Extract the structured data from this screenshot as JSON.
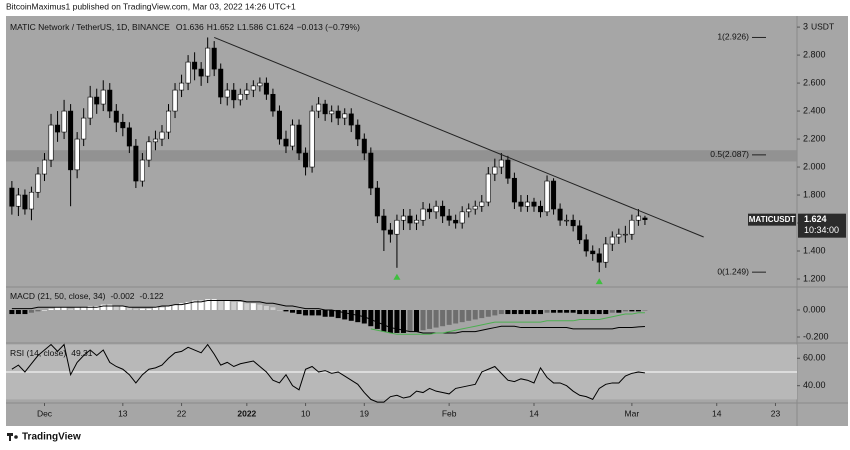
{
  "header": {
    "publisher": "BitcoinMaximus1 published on TradingView.com, Mar 03, 2022 14:26 UTC+1"
  },
  "footer": {
    "brand": "TradingView"
  },
  "chart_data": [
    {
      "type": "candlestick",
      "title": "MATIC Network / TetherUS, 1D, BINANCE",
      "ohlc_labels": [
        "O",
        "H",
        "L",
        "C"
      ],
      "change": "−0.013 (−0.79%)",
      "open": [
        1.85,
        1.72,
        1.8,
        1.7,
        1.82,
        1.95,
        2.05,
        2.3,
        2.25,
        2.4,
        1.98,
        2.2,
        2.35,
        2.5,
        2.45,
        2.55,
        2.4,
        2.32,
        2.28,
        2.15,
        1.9,
        2.05,
        2.18,
        2.2,
        2.25,
        2.4,
        2.55,
        2.6,
        2.75,
        2.7,
        2.65,
        2.85,
        2.7,
        2.5,
        2.55,
        2.48,
        2.52,
        2.55,
        2.58,
        2.6,
        2.52,
        2.4,
        2.2,
        2.15,
        2.3,
        2.1,
        2.0,
        2.4,
        2.45,
        2.38,
        2.4,
        2.35,
        2.38,
        2.3,
        2.2,
        2.1,
        1.85,
        1.65,
        1.55,
        1.52,
        1.62,
        1.65,
        1.6,
        1.62,
        1.7,
        1.68,
        1.72,
        1.65,
        1.62,
        1.6,
        1.68,
        1.7,
        1.72,
        1.75,
        1.95,
        2.0,
        2.05,
        1.92,
        1.75,
        1.72,
        1.75,
        1.72,
        1.68,
        1.9,
        1.7,
        1.62,
        1.62,
        1.58,
        1.48,
        1.4,
        1.38,
        1.32,
        1.45,
        1.5,
        1.52,
        1.52,
        1.62,
        1.636
      ],
      "high": [
        1.9,
        1.85,
        1.84,
        1.86,
        2.0,
        2.1,
        2.38,
        2.4,
        2.48,
        2.45,
        2.25,
        2.42,
        2.58,
        2.56,
        2.62,
        2.6,
        2.45,
        2.38,
        2.32,
        2.2,
        2.1,
        2.22,
        2.26,
        2.3,
        2.45,
        2.6,
        2.66,
        2.8,
        2.82,
        2.75,
        2.926,
        2.9,
        2.74,
        2.6,
        2.6,
        2.56,
        2.6,
        2.62,
        2.64,
        2.64,
        2.56,
        2.44,
        2.26,
        2.34,
        2.34,
        2.14,
        2.44,
        2.5,
        2.48,
        2.44,
        2.44,
        2.42,
        2.42,
        2.34,
        2.24,
        2.14,
        1.9,
        1.7,
        1.6,
        1.66,
        1.7,
        1.7,
        1.66,
        1.75,
        1.74,
        1.76,
        1.76,
        1.7,
        1.66,
        1.72,
        1.74,
        1.76,
        1.8,
        2.0,
        2.06,
        2.1,
        2.08,
        1.96,
        1.8,
        1.8,
        1.78,
        1.76,
        1.94,
        1.92,
        1.74,
        1.66,
        1.66,
        1.62,
        1.52,
        1.44,
        1.42,
        1.5,
        1.54,
        1.56,
        1.58,
        1.66,
        1.7,
        1.652
      ],
      "low": [
        1.66,
        1.65,
        1.66,
        1.62,
        1.78,
        1.9,
        2.0,
        2.18,
        2.2,
        1.72,
        1.92,
        2.15,
        2.3,
        2.38,
        2.4,
        2.35,
        2.25,
        2.22,
        2.1,
        1.85,
        1.86,
        2.0,
        2.12,
        2.15,
        2.2,
        2.35,
        2.5,
        2.55,
        2.62,
        2.58,
        2.6,
        2.65,
        2.45,
        2.44,
        2.42,
        2.44,
        2.48,
        2.5,
        2.54,
        2.48,
        2.36,
        2.16,
        2.1,
        2.12,
        2.05,
        1.94,
        1.96,
        2.35,
        2.33,
        2.32,
        2.3,
        2.3,
        2.25,
        2.15,
        2.05,
        1.8,
        1.6,
        1.4,
        1.46,
        1.28,
        1.55,
        1.55,
        1.55,
        1.58,
        1.63,
        1.63,
        1.6,
        1.58,
        1.56,
        1.56,
        1.64,
        1.66,
        1.68,
        1.72,
        1.9,
        1.95,
        1.88,
        1.7,
        1.68,
        1.68,
        1.68,
        1.64,
        1.65,
        1.66,
        1.58,
        1.58,
        1.54,
        1.45,
        1.36,
        1.33,
        1.249,
        1.28,
        1.4,
        1.45,
        1.46,
        1.48,
        1.58,
        1.586
      ],
      "close": [
        1.72,
        1.8,
        1.7,
        1.82,
        1.95,
        2.05,
        2.3,
        2.25,
        2.4,
        1.98,
        2.2,
        2.35,
        2.5,
        2.45,
        2.55,
        2.4,
        2.32,
        2.28,
        2.15,
        1.9,
        2.05,
        2.18,
        2.2,
        2.25,
        2.4,
        2.55,
        2.6,
        2.75,
        2.7,
        2.65,
        2.85,
        2.7,
        2.5,
        2.55,
        2.48,
        2.52,
        2.55,
        2.58,
        2.6,
        2.52,
        2.4,
        2.2,
        2.15,
        2.3,
        2.1,
        2.0,
        2.4,
        2.45,
        2.38,
        2.4,
        2.35,
        2.38,
        2.3,
        2.2,
        2.1,
        1.85,
        1.65,
        1.55,
        1.52,
        1.62,
        1.65,
        1.6,
        1.62,
        1.7,
        1.68,
        1.72,
        1.65,
        1.62,
        1.6,
        1.68,
        1.7,
        1.72,
        1.75,
        1.95,
        2.0,
        2.05,
        1.92,
        1.75,
        1.72,
        1.75,
        1.72,
        1.68,
        1.9,
        1.7,
        1.62,
        1.62,
        1.58,
        1.48,
        1.4,
        1.38,
        1.32,
        1.45,
        1.5,
        1.52,
        1.52,
        1.62,
        1.65,
        1.624
      ],
      "ylim": [
        1.15,
        3.065
      ],
      "yticks": [
        {
          "value": 1.2,
          "label": "1.200"
        },
        {
          "value": 1.4,
          "label": "1.400"
        },
        {
          "value": 1.6,
          "label": "1.600"
        },
        {
          "value": 1.8,
          "label": "1.800"
        },
        {
          "value": 2.0,
          "label": "2.000"
        },
        {
          "value": 2.2,
          "label": "2.200"
        },
        {
          "value": 2.4,
          "label": "2.400"
        },
        {
          "value": 2.6,
          "label": "2.600"
        },
        {
          "value": 2.8,
          "label": "2.800"
        },
        3
      ],
      "currency": "USDT",
      "symbol": "MATICUSDT",
      "countdown": "10:34:00",
      "xlim": [
        -0.9,
        120.3
      ],
      "xticks": [
        {
          "value": 5,
          "label": "Dec"
        },
        {
          "value": 17,
          "label": "13"
        },
        {
          "value": 26,
          "label": "22"
        },
        {
          "value": 36,
          "label": "2022"
        },
        {
          "value": 45,
          "label": "10"
        },
        {
          "value": 54,
          "label": "19"
        },
        {
          "value": 67,
          "label": "Feb"
        },
        {
          "value": 80,
          "label": "14"
        },
        {
          "value": 95,
          "label": "Mar"
        },
        {
          "value": 108,
          "label": "14"
        },
        {
          "value": 117,
          "label": "23"
        }
      ],
      "fib_levels": [
        {
          "value": 2.926,
          "label": "1(2.926)"
        },
        {
          "value": 2.087,
          "label": "0.5(2.087)"
        },
        {
          "value": 1.249,
          "label": "0(1.249)"
        }
      ],
      "zone": [
        2.04,
        2.12
      ],
      "trendline": {
        "x": [
          31,
          106
        ],
        "y": [
          2.926,
          1.5
        ]
      },
      "markers": [
        59,
        90
      ],
      "colors": {
        "up": "#ffffff",
        "down": "#000000",
        "marker": "#3fbf3f",
        "trendline": "#222222",
        "zone": "#8d8d8d"
      }
    },
    {
      "type": "macd",
      "title": "MACD (21, 50, close, 34)",
      "histogram": [
        -0.03,
        -0.03,
        -0.03,
        -0.02,
        -0.01,
        0,
        0.01,
        0.02,
        0.02,
        0.01,
        0.02,
        0.02,
        0.03,
        0.03,
        0.04,
        0.04,
        0.03,
        0.03,
        0.02,
        0.01,
        0.01,
        0.01,
        0.02,
        0.02,
        0.03,
        0.04,
        0.05,
        0.06,
        0.07,
        0.07,
        0.08,
        0.08,
        0.07,
        0.07,
        0.06,
        0.06,
        0.05,
        0.05,
        0.04,
        0.03,
        0.02,
        0,
        -0.01,
        -0.02,
        -0.03,
        -0.04,
        -0.04,
        -0.04,
        -0.05,
        -0.05,
        -0.06,
        -0.07,
        -0.08,
        -0.09,
        -0.1,
        -0.12,
        -0.14,
        -0.16,
        -0.17,
        -0.17,
        -0.17,
        -0.16,
        -0.16,
        -0.15,
        -0.14,
        -0.13,
        -0.12,
        -0.11,
        -0.1,
        -0.09,
        -0.08,
        -0.07,
        -0.06,
        -0.05,
        -0.04,
        -0.03,
        -0.03,
        -0.03,
        -0.03,
        -0.03,
        -0.03,
        -0.03,
        -0.02,
        -0.02,
        -0.02,
        -0.02,
        -0.02,
        -0.03,
        -0.03,
        -0.03,
        -0.03,
        -0.03,
        -0.02,
        -0.02,
        -0.01,
        -0.01,
        -0.01,
        -0.002
      ],
      "macd": [
        0.01,
        0.01,
        0.01,
        0.01,
        0.02,
        0.02,
        0.02,
        0.02,
        0.02,
        0.02,
        0.02,
        0.02,
        0.02,
        0.02,
        0.03,
        0.03,
        0.03,
        0.03,
        0.02,
        0.02,
        0.02,
        0.02,
        0.02,
        0.03,
        0.03,
        0.04,
        0.04,
        0.05,
        0.06,
        0.06,
        0.07,
        0.07,
        0.07,
        0.07,
        0.07,
        0.07,
        0.06,
        0.06,
        0.06,
        0.05,
        0.05,
        0.04,
        0.03,
        0.03,
        0.02,
        0.01,
        0.01,
        0.01,
        0,
        0,
        -0.01,
        -0.02,
        -0.03,
        -0.04,
        -0.05,
        -0.07,
        -0.09,
        -0.11,
        -0.13,
        -0.14,
        -0.15,
        -0.16,
        -0.16,
        -0.17,
        -0.17,
        -0.17,
        -0.17,
        -0.17,
        -0.17,
        -0.16,
        -0.16,
        -0.16,
        -0.15,
        -0.14,
        -0.13,
        -0.12,
        -0.12,
        -0.12,
        -0.13,
        -0.13,
        -0.13,
        -0.13,
        -0.13,
        -0.13,
        -0.13,
        -0.13,
        -0.14,
        -0.14,
        -0.14,
        -0.14,
        -0.14,
        -0.14,
        -0.14,
        -0.13,
        -0.13,
        -0.13,
        -0.125,
        -0.122
      ],
      "signal": [
        null,
        null,
        null,
        null,
        null,
        null,
        null,
        null,
        null,
        null,
        null,
        null,
        null,
        null,
        null,
        null,
        null,
        null,
        null,
        null,
        null,
        null,
        null,
        null,
        null,
        null,
        null,
        null,
        null,
        null,
        null,
        null,
        null,
        null,
        null,
        null,
        null,
        null,
        null,
        null,
        null,
        null,
        null,
        null,
        null,
        null,
        null,
        null,
        null,
        null,
        null,
        null,
        null,
        null,
        null,
        -0.14,
        -0.15,
        -0.16,
        -0.17,
        -0.18,
        -0.18,
        -0.18,
        -0.18,
        -0.18,
        -0.18,
        -0.17,
        -0.17,
        -0.16,
        -0.15,
        -0.14,
        -0.13,
        -0.12,
        -0.11,
        -0.1,
        -0.09,
        -0.09,
        -0.09,
        -0.09,
        -0.09,
        -0.09,
        -0.09,
        -0.09,
        -0.08,
        -0.08,
        -0.08,
        -0.08,
        -0.08,
        -0.07,
        -0.07,
        -0.07,
        -0.07,
        -0.06,
        -0.05,
        -0.04,
        -0.03,
        -0.03,
        -0.02,
        -0.02
      ],
      "ylim": [
        -0.237,
        0.163
      ],
      "yticks": [
        {
          "value": 0,
          "label": "0.000"
        },
        {
          "value": -0.2,
          "label": "-0.200"
        }
      ],
      "colors": {
        "pos_up": "#ffffff",
        "pos_down": "#cfcfcf",
        "neg_down": "#000000",
        "neg_up": "#6e6e6e",
        "macd": "#000000",
        "signal": "#4caf50"
      }
    },
    {
      "type": "rsi",
      "title": "RSI (14, close)",
      "values": [
        52,
        55,
        50,
        56,
        62,
        66,
        70,
        65,
        70,
        48,
        57,
        62,
        66,
        62,
        66,
        57,
        54,
        52,
        48,
        42,
        48,
        52,
        53,
        55,
        60,
        64,
        65,
        68,
        66,
        64,
        70,
        63,
        55,
        57,
        54,
        56,
        57,
        58,
        54,
        50,
        44,
        42,
        48,
        40,
        37,
        52,
        54,
        50,
        51,
        49,
        50,
        47,
        44,
        41,
        35,
        30,
        28,
        28,
        32,
        33,
        31,
        32,
        36,
        35,
        38,
        36,
        35,
        34,
        38,
        39,
        40,
        41,
        50,
        52,
        54,
        49,
        44,
        43,
        45,
        44,
        42,
        53,
        46,
        42,
        42,
        40,
        36,
        33,
        32,
        30,
        38,
        41,
        42,
        42,
        47,
        49,
        50,
        49.31
      ],
      "ylim": [
        28.1,
        70.4
      ],
      "yticks": [
        {
          "value": 60,
          "label": "60.00"
        },
        {
          "value": 40,
          "label": "40.00"
        }
      ],
      "band": [
        30,
        70
      ],
      "midline": 50,
      "colors": {
        "line": "#000000",
        "band": "#b8b8b8",
        "midline": "#ffffff"
      }
    }
  ]
}
